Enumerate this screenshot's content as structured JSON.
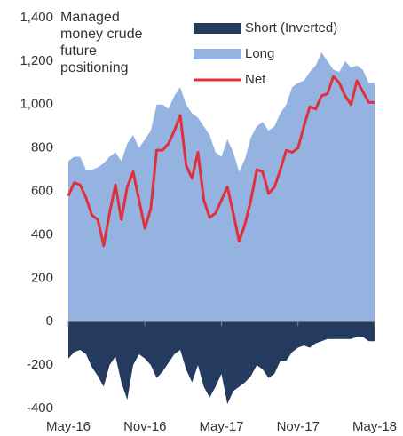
{
  "chart_data": {
    "type": "area",
    "title": "Managed money crude future positioning",
    "categories": [
      "May-16",
      null,
      null,
      null,
      null,
      null,
      null,
      null,
      null,
      null,
      null,
      null,
      null,
      "Nov-16",
      null,
      null,
      null,
      null,
      null,
      null,
      null,
      null,
      null,
      null,
      null,
      null,
      "May-17",
      null,
      null,
      null,
      null,
      null,
      null,
      null,
      null,
      null,
      null,
      null,
      null,
      "Nov-17",
      null,
      null,
      null,
      null,
      null,
      null,
      null,
      null,
      null,
      null,
      null,
      null,
      "May-18"
    ],
    "series": [
      {
        "name": "Short (Inverted)",
        "color": "#243a5e",
        "values": [
          -170,
          -140,
          -130,
          -150,
          -210,
          -250,
          -300,
          -200,
          -160,
          -280,
          -360,
          -200,
          -150,
          -170,
          -200,
          -260,
          -230,
          -190,
          -150,
          -130,
          -220,
          -280,
          -200,
          -300,
          -350,
          -300,
          -240,
          -380,
          -320,
          -300,
          -280,
          -250,
          -200,
          -220,
          -260,
          -240,
          -180,
          -180,
          -140,
          -120,
          -110,
          -120,
          -100,
          -90,
          -80,
          -80,
          -80,
          -80,
          -80,
          -70,
          -70,
          -90,
          -90
        ]
      },
      {
        "name": "Long",
        "color": "#95b3e0",
        "values": [
          740,
          760,
          760,
          700,
          700,
          710,
          730,
          760,
          780,
          740,
          820,
          860,
          800,
          840,
          880,
          1000,
          1000,
          980,
          1040,
          1080,
          1000,
          960,
          940,
          900,
          860,
          780,
          760,
          840,
          780,
          690,
          750,
          850,
          900,
          920,
          880,
          900,
          960,
          1000,
          1080,
          1100,
          1110,
          1150,
          1180,
          1240,
          1200,
          1160,
          1150,
          1200,
          1170,
          1180,
          1160,
          1100,
          1100
        ]
      },
      {
        "name": "Net",
        "color": "#e0303c",
        "values": [
          580,
          640,
          630,
          570,
          490,
          470,
          350,
          500,
          630,
          470,
          620,
          690,
          560,
          430,
          520,
          790,
          790,
          820,
          880,
          950,
          720,
          660,
          780,
          560,
          480,
          500,
          560,
          620,
          500,
          370,
          450,
          560,
          700,
          690,
          590,
          620,
          700,
          790,
          780,
          800,
          900,
          990,
          980,
          1040,
          1050,
          1130,
          1100,
          1040,
          1000,
          1110,
          1060,
          1010,
          1010
        ]
      }
    ],
    "ylim": [
      -400,
      1400
    ],
    "yticks": [
      -400,
      -200,
      0,
      200,
      400,
      600,
      800,
      {
        "value": 1000,
        "label": "1,000"
      },
      {
        "value": 1200,
        "label": "1,200"
      },
      {
        "value": 1400,
        "label": "1,400"
      }
    ],
    "legend": "top-right"
  }
}
